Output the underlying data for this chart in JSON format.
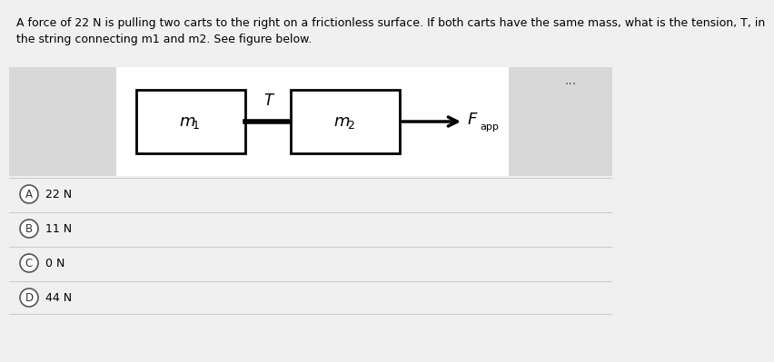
{
  "bg_color": "#f0f0f0",
  "diagram_bg": "#ffffff",
  "diagram_bg_left": "#e0e0e0",
  "diagram_bg_right": "#e0e0e0",
  "question_text": "A force of 22 N is pulling two carts to the right on a frictionless surface. If both carts have the same mass, what is the tension, T, in\nthe string connecting m1 and m2. See figure below.",
  "question_fontsize": 9,
  "choices": [
    {
      "label": "A",
      "text": "22 N"
    },
    {
      "label": "B",
      "text": "11 N"
    },
    {
      "label": "C",
      "text": "0 N"
    },
    {
      "label": "D",
      "text": "44 N"
    }
  ],
  "choice_fontsize": 9,
  "box1_label": "m",
  "box1_sub": "1",
  "box2_label": "m",
  "box2_sub": "2",
  "tension_label": "T",
  "force_label": "F",
  "force_sub": "app",
  "dots": "...",
  "box_color": "#ffffff",
  "box_edge_color": "#000000",
  "arrow_color": "#000000",
  "text_color": "#000000",
  "label_fontsize": 11,
  "sub_fontsize": 8
}
